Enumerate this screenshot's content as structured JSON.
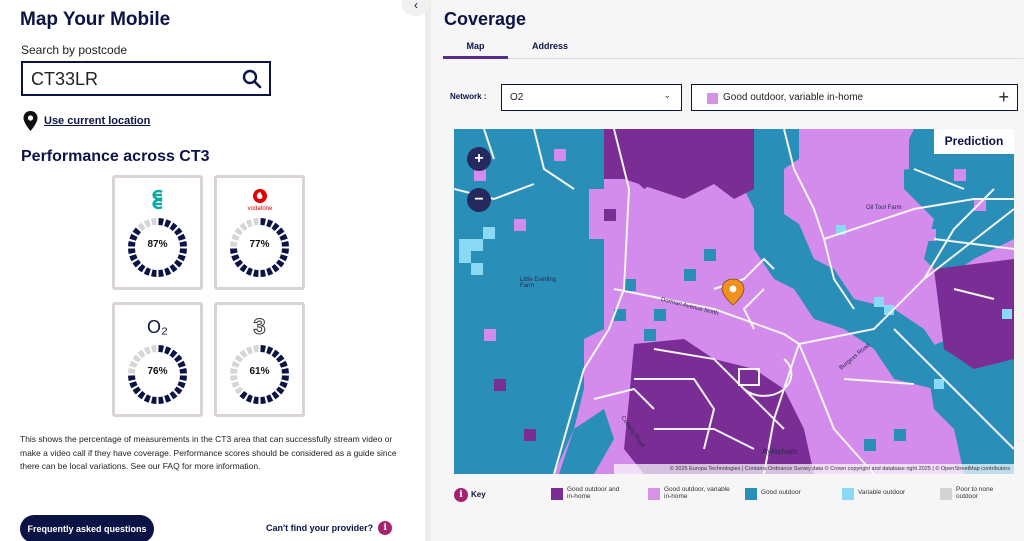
{
  "left": {
    "title": "Map Your Mobile",
    "search_label": "Search by postcode",
    "search_value": "CT33LR",
    "use_location": "Use current location",
    "perf_title": "Performance across CT3",
    "operators": [
      {
        "name": "EE",
        "logo": "EE",
        "percent": 87,
        "percent_label": "87%",
        "brand_color": "#12a8a4"
      },
      {
        "name": "Vodafone",
        "logo": "vodafone",
        "percent": 77,
        "percent_label": "77%",
        "brand_color": "#e60000"
      },
      {
        "name": "O2",
        "logo": "O₂",
        "percent": 76,
        "percent_label": "76%",
        "brand_color": "#0c1445"
      },
      {
        "name": "Three",
        "logo": "3",
        "percent": 61,
        "percent_label": "61%",
        "brand_color": "#333333"
      }
    ],
    "description": "This shows the percentage of measurements in the CT3 area that can successfully stream video or make a video call if they have coverage. Performance scores should be considered as a guide since there can be local variations. See our FAQ for more information.",
    "faq_button": "Frequently asked questions",
    "cant_find": "Can't find your provider?",
    "info_glyph": "i"
  },
  "right": {
    "title": "Coverage",
    "tabs": [
      {
        "label": "Map",
        "active": true
      },
      {
        "label": "Address",
        "active": false
      }
    ],
    "network_label": "Network :",
    "network_value": "O2",
    "coverage_value": "Good outdoor, variable in-home",
    "prediction_label": "Prediction",
    "zoom_in": "+",
    "zoom_out": "−",
    "attribution": "© 2025 Europa Technologies | Contains Ordnance Survey data © Crown copyright and database right 2025 | © OpenStreetMap contributors",
    "places": [
      "Little Everling Farm",
      "Oil Tool Farm",
      "Aylesham",
      "Dorman Avenue North",
      "Burgess Road",
      "Cooting Road"
    ],
    "legend_title": "Key",
    "legend": [
      {
        "label": "Good outdoor and in-home",
        "color": "#7b2d96"
      },
      {
        "label": "Good outdoor, variable in-home",
        "color": "#d693e6"
      },
      {
        "label": "Good outdoor",
        "color": "#2a8fb8"
      },
      {
        "label": "Variable outdoor",
        "color": "#8ad9f5"
      },
      {
        "label": "Poor to none outdoor",
        "color": "#d3d3d3"
      }
    ]
  }
}
